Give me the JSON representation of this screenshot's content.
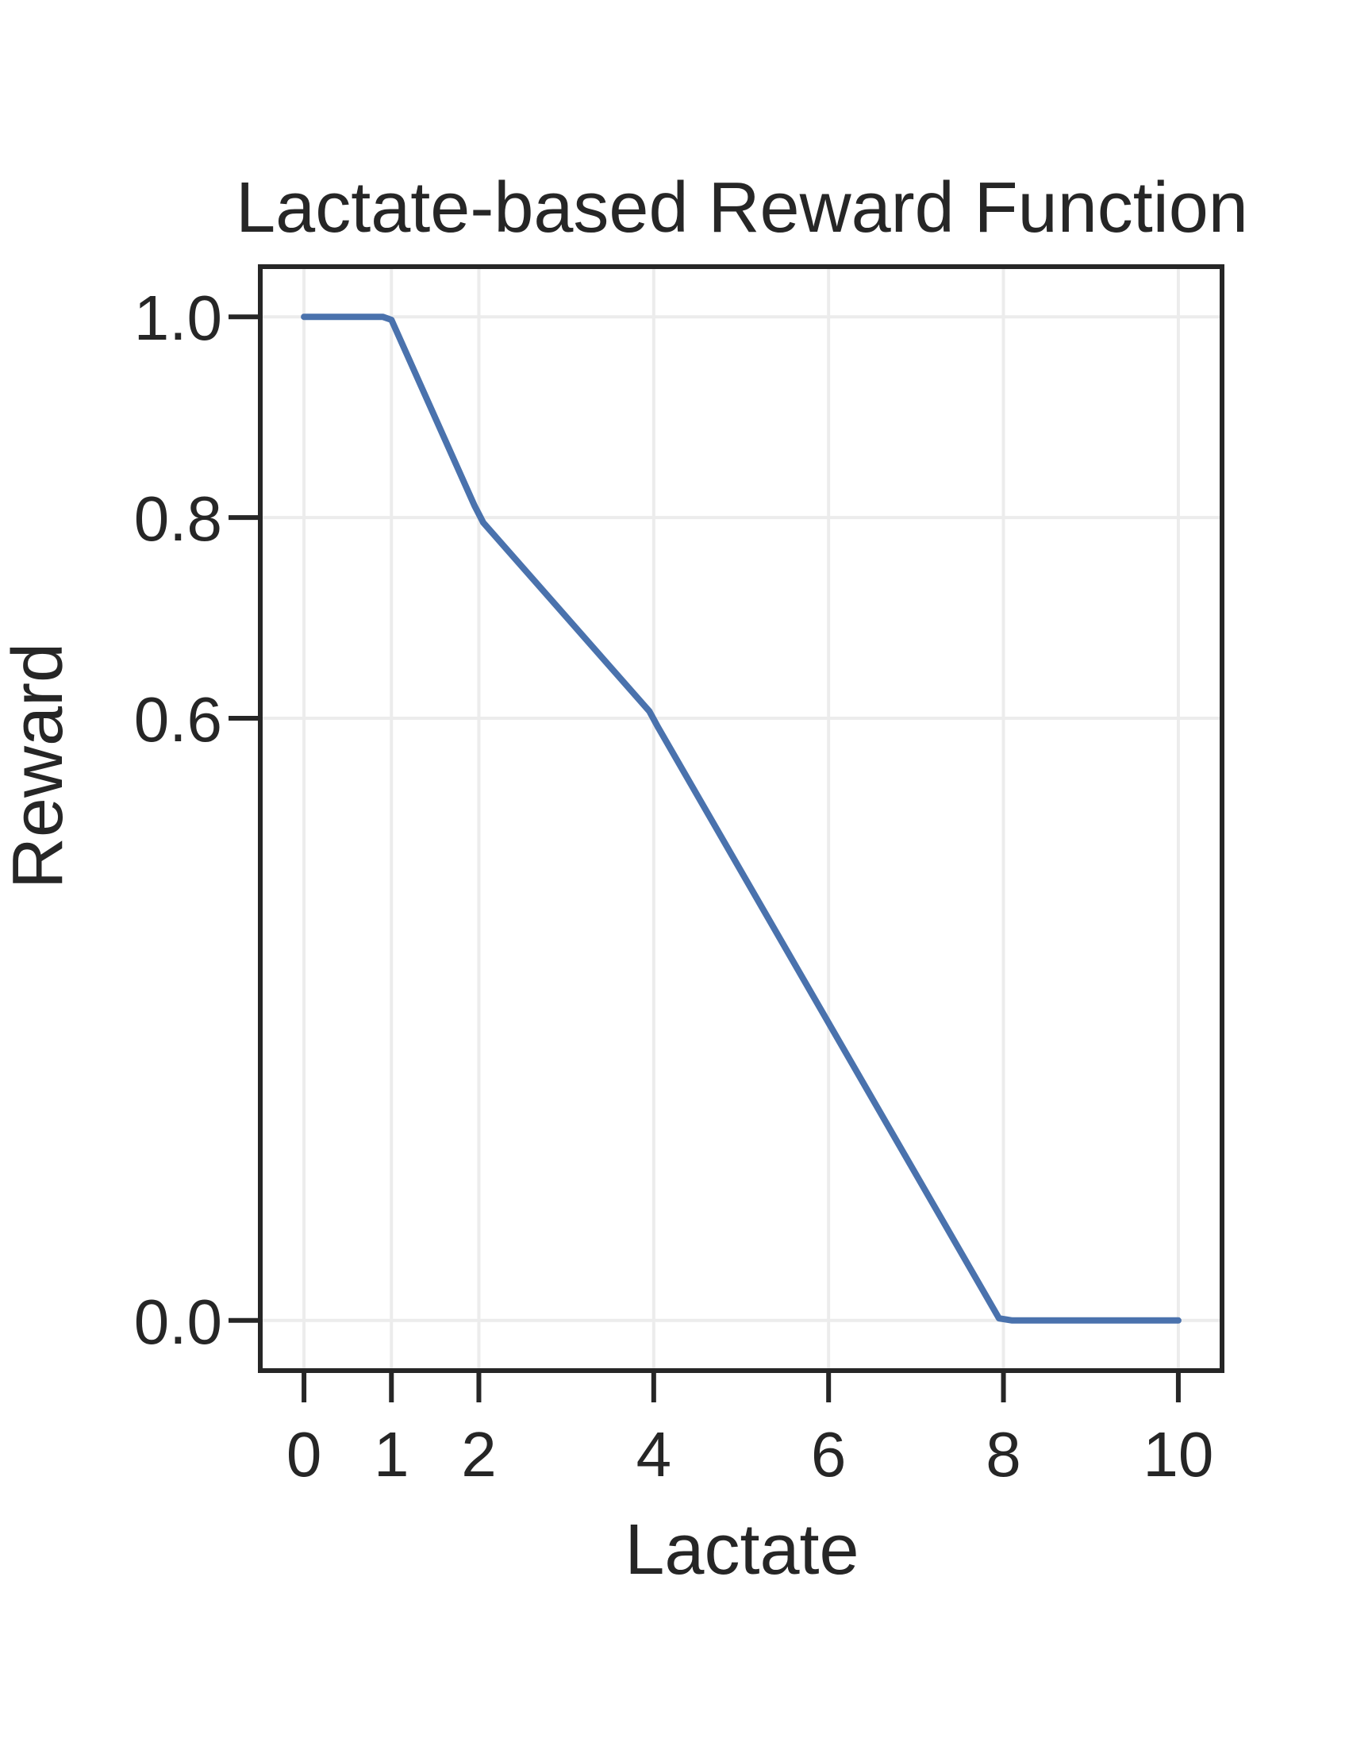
{
  "chart_data": {
    "type": "line",
    "title": "Lactate-based Reward Function",
    "xlabel": "Lactate",
    "ylabel": "Reward",
    "xlim": [
      -0.5,
      10.5
    ],
    "ylim": [
      -0.05,
      1.05
    ],
    "xticks": [
      0,
      1,
      2,
      4,
      6,
      8,
      10
    ],
    "xtick_labels": [
      "0",
      "1",
      "2",
      "4",
      "6",
      "8",
      "10"
    ],
    "yticks": [
      0.0,
      0.6,
      0.8,
      1.0
    ],
    "ytick_labels": [
      "0.0",
      "0.6",
      "0.8",
      "1.0"
    ],
    "grid": true,
    "series": [
      {
        "color": "#4a72ad",
        "x": [
          0,
          0.9,
          1.0,
          1.95,
          2.05,
          3.95,
          4.05,
          7.95,
          8.1,
          10
        ],
        "y": [
          1.0,
          1.0,
          0.997,
          0.812,
          0.795,
          0.607,
          0.591,
          0.002,
          0.0,
          0.0
        ]
      }
    ]
  }
}
